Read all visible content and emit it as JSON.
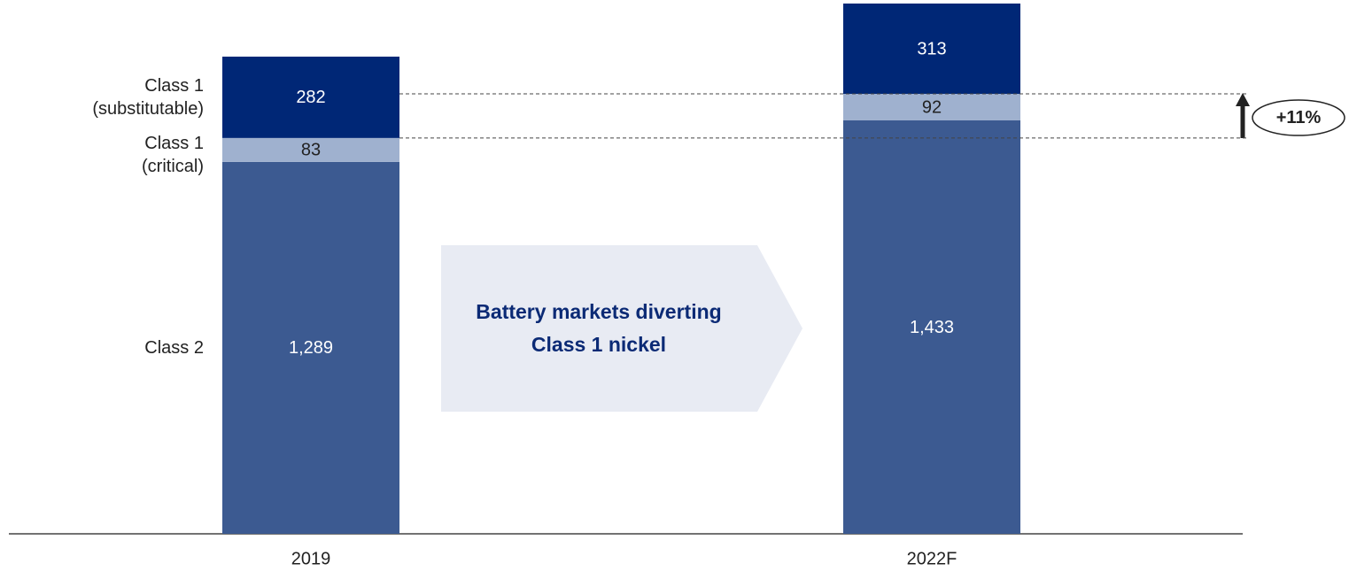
{
  "chart_data": {
    "type": "stacked_bar",
    "categories": [
      "2019",
      "2022F"
    ],
    "series": [
      {
        "name": "Class 2",
        "color": "#3c5a91",
        "values": [
          1289,
          1433
        ],
        "value_labels": [
          "1,289",
          "1,433"
        ]
      },
      {
        "name": "Class 1\n(critical)",
        "color": "#9fb1cf",
        "values": [
          83,
          92
        ]
      },
      {
        "name": "Class 1\n(substitutable)",
        "color": "#002776",
        "values": [
          282,
          313
        ]
      }
    ],
    "annotations": [
      "Battery markets diverting Class 1 nickel",
      "+11%"
    ]
  }
}
